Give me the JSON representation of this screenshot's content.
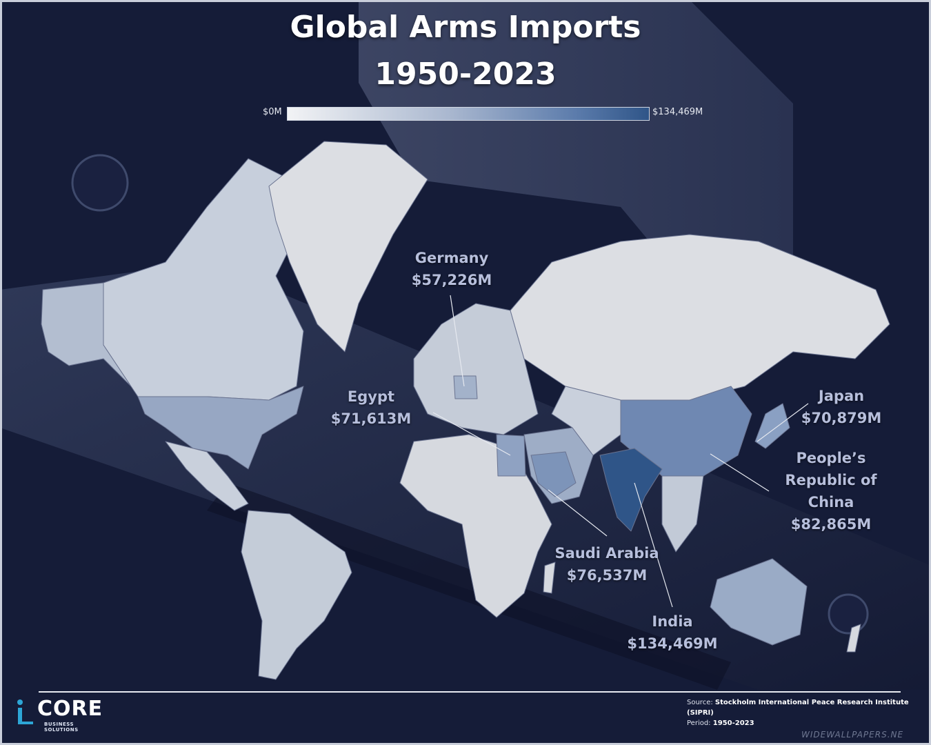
{
  "title": {
    "line1": "Global Arms Imports",
    "line2": "1950-2023"
  },
  "legend": {
    "min_label": "$0M",
    "max_label": "$134,469M",
    "min_value": 0,
    "max_value": 134469,
    "colors": {
      "low": "#f2f3f5",
      "high": "#2f5588"
    }
  },
  "callouts": [
    {
      "country": "Germany",
      "value": "$57,226M",
      "amount": 57226
    },
    {
      "country": "Egypt",
      "value": "$71,613M",
      "amount": 71613
    },
    {
      "country": "Japan",
      "value": "$70,879M",
      "amount": 70879
    },
    {
      "country_line1": "People’s",
      "country_line2": "Republic of",
      "country_line3": "China",
      "value": "$82,865M",
      "amount": 82865
    },
    {
      "country": "Saudi Arabia",
      "value": "$76,537M",
      "amount": 76537
    },
    {
      "country": "India",
      "value": "$134,469M",
      "amount": 134469
    }
  ],
  "logo": {
    "text": "CORE",
    "subtitle": "BUSINESS SOLUTIONS"
  },
  "source": {
    "source_label": "Source:",
    "source_name": "Stockholm International Peace Research Institute (SIPRI)",
    "period_label": "Period:",
    "period_value": "1950-2023"
  },
  "watermark": "WIDEWALLPAPERS.NE"
}
